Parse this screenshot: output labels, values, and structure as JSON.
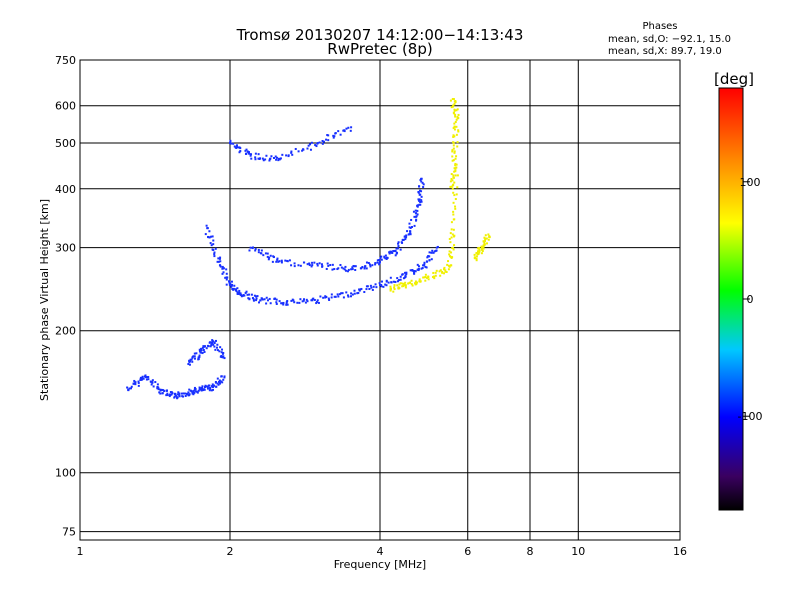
{
  "chart_data": {
    "type": "scatter",
    "title": "Tromsø 20130207 14:12:00−14:13:43",
    "subtitle": "RwPretec (8p)",
    "xlabel": "Frequency [MHz]",
    "ylabel": "Stationary phase Virtual Height [km]",
    "x_scale": "log",
    "y_scale": "log",
    "xlim": [
      1,
      16
    ],
    "ylim": [
      72,
      750
    ],
    "x_ticks": [
      1,
      2,
      4,
      6,
      8,
      10,
      16
    ],
    "y_ticks": [
      75,
      100,
      200,
      300,
      400,
      500,
      600,
      750
    ],
    "x_grid": [
      2,
      4,
      6,
      8,
      10
    ],
    "y_grid": [
      75,
      100,
      200,
      300,
      400,
      500,
      600
    ],
    "grid": true,
    "stats": {
      "heading": "Phases",
      "line_o": "mean, sd,O: −92.1, 15.0",
      "line_x": "mean, sd,X:  89.7, 19.0"
    },
    "colorbar": {
      "label": "[deg]",
      "range": [
        -180,
        180
      ],
      "ticks": [
        100,
        0,
        -100
      ],
      "colormap": "rainbow",
      "position": "right"
    },
    "traces": [
      {
        "name": "",
        "phase": -100,
        "x": [
          1.25,
          1.35,
          1.45,
          1.55,
          1.65,
          1.75,
          1.85,
          1.95
        ],
        "y": [
          150,
          160,
          150,
          145,
          148,
          150,
          152,
          160
        ]
      },
      {
        "name": "",
        "phase": -100,
        "x": [
          1.65,
          1.75,
          1.85,
          1.95
        ],
        "y": [
          170,
          180,
          190,
          175
        ]
      },
      {
        "name": "",
        "phase": -100,
        "x": [
          1.8,
          1.9,
          2.0,
          2.1,
          2.3,
          2.6,
          3.0,
          3.5,
          4.0,
          4.5,
          4.9,
          5.2
        ],
        "y": [
          330,
          280,
          250,
          240,
          232,
          230,
          232,
          240,
          250,
          262,
          275,
          300
        ]
      },
      {
        "name": "",
        "phase": -100,
        "x": [
          2.2,
          2.5,
          3.0,
          3.5,
          4.0,
          4.3,
          4.6,
          4.8,
          4.85
        ],
        "y": [
          300,
          280,
          275,
          270,
          280,
          295,
          325,
          370,
          420
        ]
      },
      {
        "name": "",
        "phase": -100,
        "x": [
          2.0,
          2.2,
          2.5,
          3.0,
          3.5
        ],
        "y": [
          500,
          470,
          460,
          500,
          540
        ]
      },
      {
        "name": "",
        "phase": 100,
        "x": [
          4.2,
          4.5,
          5.0,
          5.5,
          5.6,
          5.7
        ],
        "y": [
          245,
          250,
          260,
          270,
          320,
          450
        ]
      },
      {
        "name": "",
        "phase": 100,
        "x": [
          5.6,
          5.65,
          5.7,
          5.6
        ],
        "y": [
          400,
          480,
          560,
          620
        ]
      },
      {
        "name": "",
        "phase": 70,
        "x": [
          6.2,
          6.4,
          6.6
        ],
        "y": [
          285,
          300,
          320
        ]
      }
    ]
  }
}
